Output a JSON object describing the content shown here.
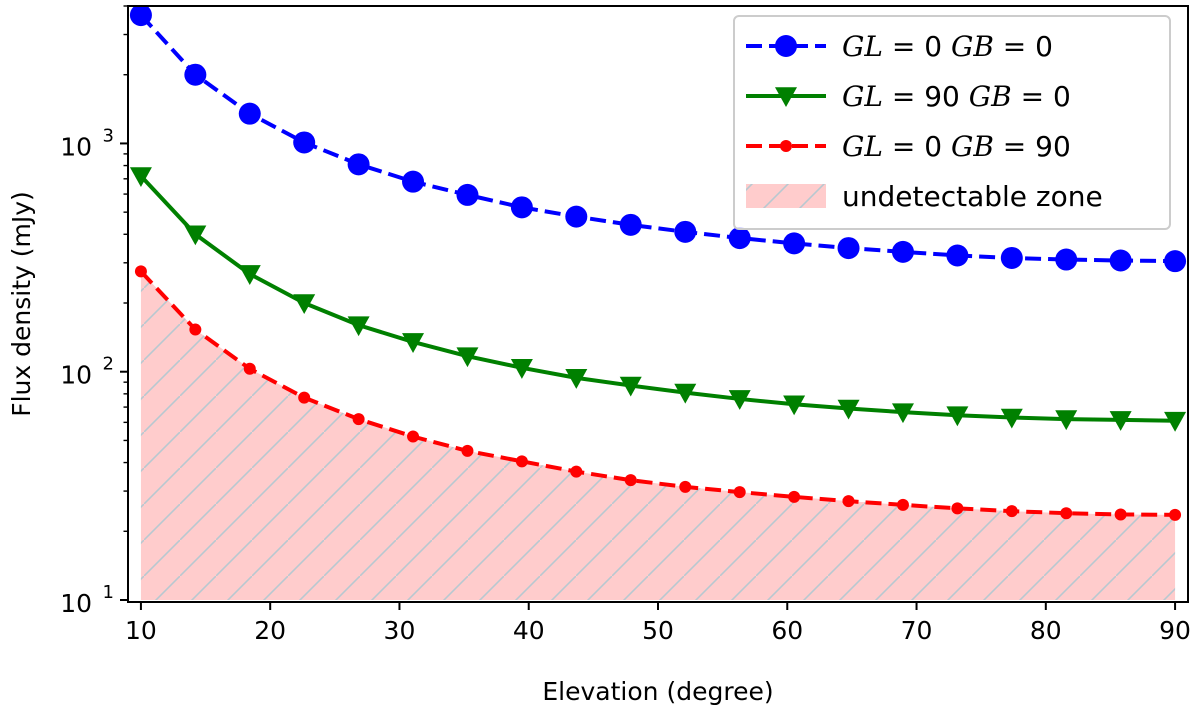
{
  "chart_data": {
    "type": "line",
    "title": "",
    "xlabel": "Elevation (degree)",
    "ylabel": "Flux density (mJy)",
    "xlim": [
      9,
      91
    ],
    "ylim": [
      9.8,
      4000
    ],
    "yscale": "log",
    "x_ticks": [
      10,
      20,
      30,
      40,
      50,
      60,
      70,
      80,
      90
    ],
    "y_ticks": [
      {
        "value": 10,
        "base": "10",
        "exp": "1"
      },
      {
        "value": 100,
        "base": "10",
        "exp": "2"
      },
      {
        "value": 1000,
        "base": "10",
        "exp": "3"
      }
    ],
    "grid": false,
    "legend_position": "top-right",
    "x": [
      10,
      14.21,
      18.42,
      22.63,
      26.84,
      31.05,
      35.26,
      39.47,
      43.68,
      47.89,
      52.11,
      56.32,
      60.53,
      64.74,
      68.95,
      73.16,
      77.37,
      81.58,
      85.79,
      90
    ],
    "series": [
      {
        "name": "GL = 0  GB = 0",
        "legend_parts": [
          {
            "t": "GL",
            "m": true
          },
          {
            "t": " = 0  ",
            "m": false
          },
          {
            "t": "GB",
            "m": true
          },
          {
            "t": " = 0",
            "m": false
          }
        ],
        "color": "#0000ff",
        "dash": "dashed",
        "marker": "circle",
        "values": [
          3650,
          2000,
          1350,
          1010,
          810,
          680,
          595,
          525,
          478,
          440,
          410,
          385,
          365,
          348,
          335,
          323,
          315,
          310,
          307,
          305
        ]
      },
      {
        "name": "GL = 90 GB = 0",
        "legend_parts": [
          {
            "t": "GL",
            "m": true
          },
          {
            "t": " = 90 ",
            "m": false
          },
          {
            "t": "GB",
            "m": true
          },
          {
            "t": " = 0",
            "m": false
          }
        ],
        "color": "#008000",
        "dash": "solid",
        "marker": "triangle-down",
        "values": [
          720,
          400,
          268,
          200,
          160,
          135,
          117,
          104,
          94,
          87,
          81,
          76,
          72,
          69,
          66.5,
          64.5,
          63,
          62,
          61.5,
          61
        ]
      },
      {
        "name": "GL = 0  GB = 90",
        "legend_parts": [
          {
            "t": "GL",
            "m": true
          },
          {
            "t": " = 0  ",
            "m": false
          },
          {
            "t": "GB",
            "m": true
          },
          {
            "t": " = 90",
            "m": false
          }
        ],
        "color": "#ff0000",
        "dash": "dashed",
        "marker": "small-circle",
        "values": [
          275,
          153,
          103,
          77,
          62,
          52,
          45,
          40.5,
          36.5,
          33.5,
          31.3,
          29.7,
          28.3,
          27.1,
          26.1,
          25.2,
          24.5,
          24,
          23.7,
          23.6
        ]
      }
    ],
    "fill": {
      "name": "undetectable zone",
      "legend_parts": [
        {
          "t": "undetectable zone",
          "m": false
        }
      ],
      "color": "#ffcccc",
      "hatch_color": "#b8c8d0",
      "bottom": 10,
      "follows_series": 2
    }
  }
}
